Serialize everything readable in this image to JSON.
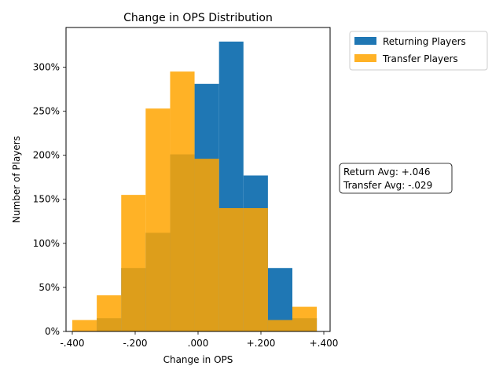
{
  "chart_data": {
    "type": "bar",
    "title": "Change in OPS Distribution",
    "xlabel": "Change in OPS",
    "ylabel": "Number of Players",
    "xlim": [
      -0.42,
      0.42
    ],
    "ylim": [
      0,
      3.45
    ],
    "x_ticks": [
      {
        "value": -0.4,
        "label": "-.400"
      },
      {
        "value": -0.2,
        "label": "-.200"
      },
      {
        "value": 0.0,
        "label": ".000"
      },
      {
        "value": 0.2,
        "label": "+.200"
      },
      {
        "value": 0.4,
        "label": "+.400"
      }
    ],
    "y_ticks": [
      {
        "value": 0,
        "label": "0%"
      },
      {
        "value": 0.5,
        "label": "50%"
      },
      {
        "value": 1.0,
        "label": "100%"
      },
      {
        "value": 1.5,
        "label": "150%"
      },
      {
        "value": 2.0,
        "label": "200%"
      },
      {
        "value": 2.5,
        "label": "250%"
      },
      {
        "value": 3.0,
        "label": "300%"
      }
    ],
    "bin_edges": [
      -0.4,
      -0.3222,
      -0.2444,
      -0.1667,
      -0.0889,
      -0.0111,
      0.0667,
      0.1444,
      0.2222,
      0.3,
      0.3778
    ],
    "series": [
      {
        "name": "Returning Players",
        "color": "#1f77b4",
        "values": [
          0,
          0.15,
          0.72,
          1.12,
          2.01,
          2.81,
          3.29,
          1.77,
          0.72,
          0.15
        ]
      },
      {
        "name": "Transfer Players",
        "color": "#ffa500",
        "values": [
          0.13,
          0.41,
          1.55,
          2.53,
          2.95,
          1.96,
          1.4,
          1.4,
          0.13,
          0.28
        ]
      }
    ],
    "legend": {
      "position": "outside top-right"
    },
    "annotation": {
      "lines": [
        "Return Avg: +.046",
        "Transfer Avg: -.029"
      ]
    },
    "grid": false
  }
}
